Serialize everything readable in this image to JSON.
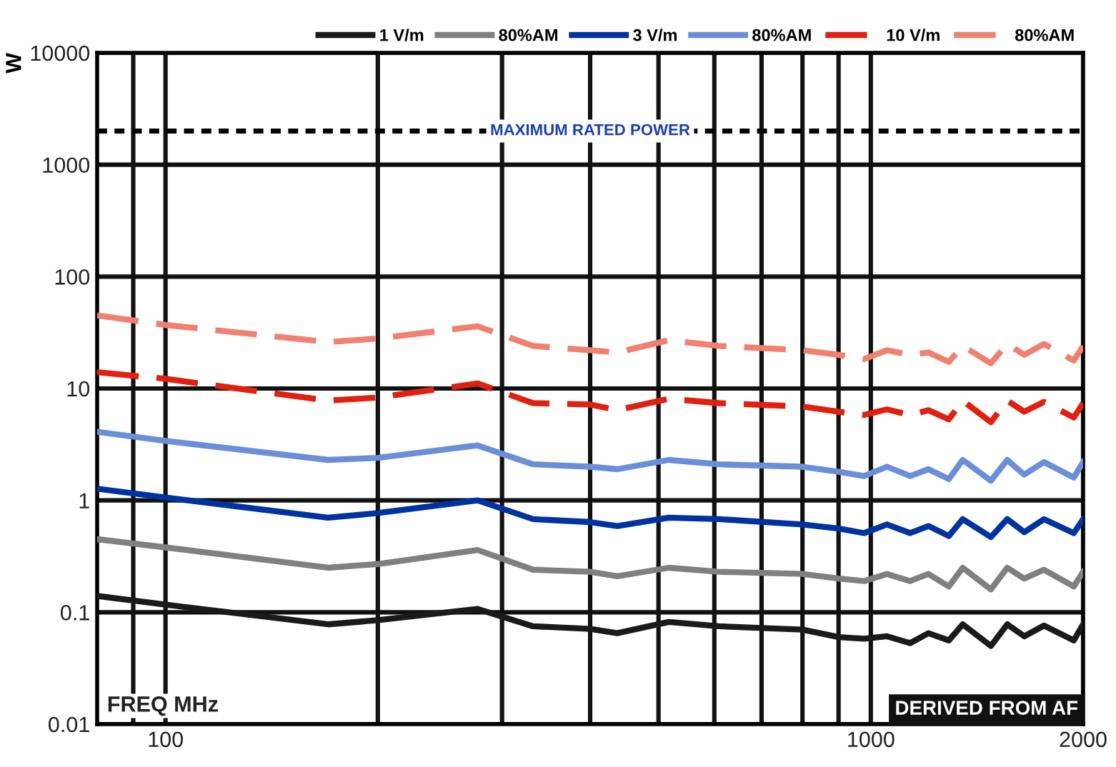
{
  "chart_data": {
    "type": "line",
    "ylabel": "W",
    "x": [
      80,
      100,
      170,
      200,
      277,
      332,
      400,
      437,
      517,
      609,
      800,
      901,
      978,
      1054,
      1137,
      1207,
      1290,
      1350,
      1480,
      1561,
      1650,
      1760,
      1940,
      2000
    ],
    "series": [
      {
        "name": "1 V/m",
        "color": "#1a1a1a",
        "line_style": "solid",
        "values": [
          0.14,
          0.117,
          0.078,
          0.085,
          0.107,
          0.075,
          0.071,
          0.065,
          0.082,
          0.075,
          0.07,
          0.06,
          0.058,
          0.061,
          0.053,
          0.065,
          0.056,
          0.078,
          0.05,
          0.078,
          0.061,
          0.076,
          0.056,
          0.078
        ]
      },
      {
        "name": "80%AM",
        "color": "#808080",
        "line_style": "solid",
        "values": [
          0.45,
          0.38,
          0.25,
          0.27,
          0.36,
          0.24,
          0.23,
          0.21,
          0.25,
          0.23,
          0.22,
          0.2,
          0.19,
          0.22,
          0.19,
          0.22,
          0.17,
          0.25,
          0.16,
          0.25,
          0.2,
          0.24,
          0.17,
          0.23
        ]
      },
      {
        "name": "3 V/m",
        "color": "#0033a0",
        "line_style": "solid",
        "values": [
          1.27,
          1.06,
          0.7,
          0.77,
          1.0,
          0.68,
          0.64,
          0.59,
          0.7,
          0.68,
          0.61,
          0.56,
          0.51,
          0.61,
          0.51,
          0.59,
          0.48,
          0.68,
          0.47,
          0.68,
          0.52,
          0.68,
          0.51,
          0.68
        ]
      },
      {
        "name": "80%AM",
        "color": "#6a8fd8",
        "line_style": "solid",
        "values": [
          4.1,
          3.4,
          2.3,
          2.4,
          3.1,
          2.1,
          2.0,
          1.9,
          2.3,
          2.1,
          2.0,
          1.8,
          1.65,
          2.0,
          1.65,
          1.9,
          1.55,
          2.3,
          1.5,
          2.3,
          1.7,
          2.2,
          1.6,
          2.2
        ]
      },
      {
        "name": "10 V/m",
        "color": "#e02010",
        "line_style": "dashed",
        "values": [
          14,
          12.2,
          7.8,
          8.3,
          11.1,
          7.4,
          7.2,
          6.4,
          8.1,
          7.4,
          6.9,
          6.2,
          5.8,
          6.5,
          5.8,
          6.4,
          5.3,
          7.8,
          5.0,
          7.8,
          6.2,
          7.6,
          5.5,
          7.4
        ]
      },
      {
        "name": "80%AM",
        "color": "#f08070",
        "line_style": "dashed",
        "values": [
          45,
          37,
          26,
          28,
          36,
          24,
          22,
          21,
          27,
          24,
          22,
          20,
          18.3,
          22,
          20,
          21,
          17.3,
          24,
          16.8,
          25,
          20,
          25,
          17.8,
          24
        ]
      }
    ],
    "log": "xy",
    "xlim": [
      80,
      2000
    ],
    "ylim": [
      0.01,
      10000
    ],
    "xticks": [
      {
        "value": 90,
        "label": null
      },
      100,
      {
        "value": 200,
        "label": null
      },
      {
        "value": 300,
        "label": null
      },
      {
        "value": 400,
        "label": null
      },
      {
        "value": 500,
        "label": null
      },
      {
        "value": 600,
        "label": null
      },
      {
        "value": 700,
        "label": null
      },
      {
        "value": 800,
        "label": null
      },
      {
        "value": 900,
        "label": null
      },
      1000,
      2000
    ],
    "yticks": [
      0.01,
      0.1,
      1,
      10,
      100,
      1000,
      10000
    ],
    "grid": true,
    "legend": "top right",
    "ref_lines": [
      {
        "axis": "y",
        "value": 2000,
        "label": "MAXIMUM RATED POWER",
        "color": "#000000",
        "line_style": "dotted"
      }
    ],
    "annotations": [
      "FREQ MHz",
      "DERIVED FROM AF"
    ]
  }
}
